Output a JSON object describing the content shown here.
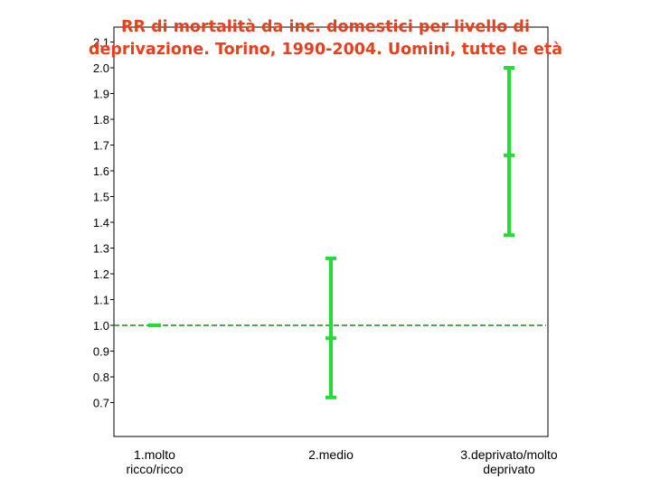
{
  "chart_data": {
    "type": "errorbar",
    "title": "RR di mortalità da inc. domestici per livello di deprivazione. Torino, 1990-2004. Uomini, tutte le età",
    "xlabel": "",
    "ylabel": "",
    "ylim": [
      0.6,
      2.15
    ],
    "yticks": [
      "2.1",
      "2.0",
      "1.9",
      "1.8",
      "1.7",
      "1.6",
      "1.5",
      "1.4",
      "1.3",
      "1.2",
      "1.1",
      "1.0",
      "0.9",
      "0.8",
      "0.7"
    ],
    "categories": [
      [
        "1.molto",
        "ricco/ricco"
      ],
      [
        "2.medio"
      ],
      [
        "3.deprivato/molto",
        "deprivato"
      ]
    ],
    "series": [
      {
        "points": [
          {
            "estimate": 1.0,
            "lower": 1.0,
            "upper": 1.0
          },
          {
            "estimate": 0.95,
            "lower": 0.72,
            "upper": 1.26
          },
          {
            "estimate": 1.66,
            "lower": 1.35,
            "upper": 2.0
          }
        ]
      }
    ],
    "reference_line": 1.0,
    "grid": false,
    "colors": {
      "marker": "#22dd33",
      "reference": "#1a8a1a",
      "title": "#e8401c",
      "frame": "#000000"
    }
  }
}
